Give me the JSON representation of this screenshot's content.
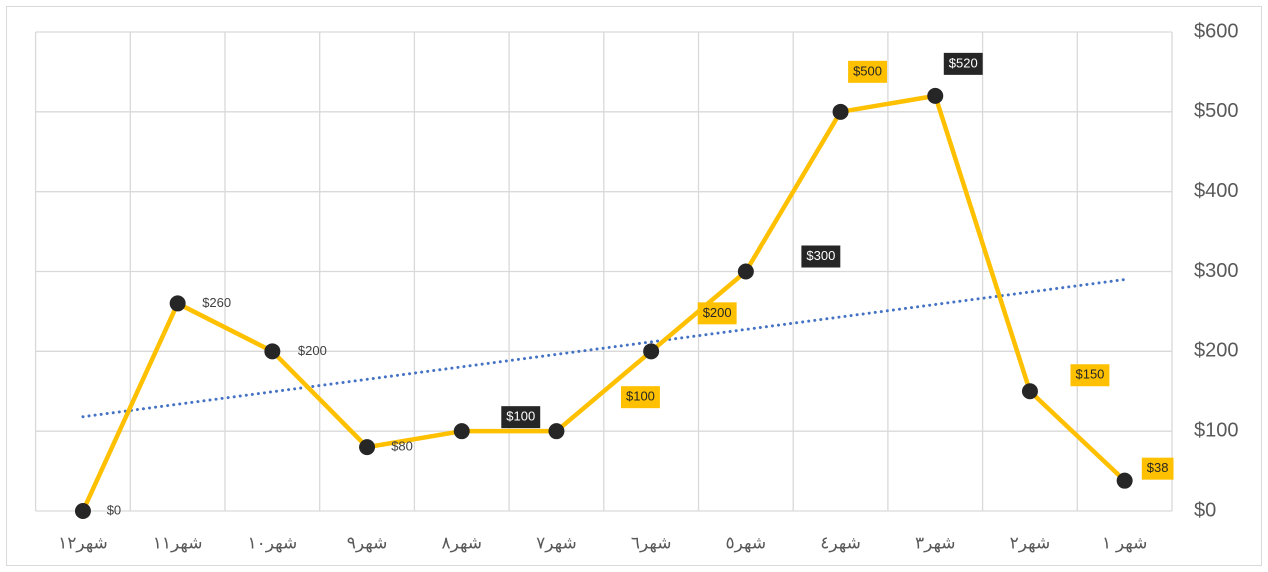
{
  "chart_data": {
    "type": "line",
    "categories": [
      "شهر١٢",
      "شهر١١",
      "شهر١٠",
      "شهر٩",
      "شهر٨",
      "شهر٧",
      "شهر٦",
      "شهر٥",
      "شهر٤",
      "شهر٣",
      "شهر٢",
      "شهر ١"
    ],
    "series": [
      {
        "color": "#ffc000",
        "marker_color": "#262626",
        "values": [
          0,
          260,
          200,
          80,
          100,
          100,
          200,
          300,
          500,
          520,
          150,
          38
        ],
        "value_labels": [
          "$0",
          "$260",
          "$200",
          "$80",
          "$100",
          "$100",
          "$200",
          "$300",
          "$500",
          "$520",
          "$150",
          "$38"
        ]
      }
    ],
    "ylim": [
      0,
      600
    ],
    "yticks": [
      {
        "value": 0,
        "label": "$0"
      },
      {
        "value": 100,
        "label": "$100"
      },
      {
        "value": 200,
        "label": "$200"
      },
      {
        "value": 300,
        "label": "$300"
      },
      {
        "value": 400,
        "label": "$400"
      },
      {
        "value": 500,
        "label": "$500"
      },
      {
        "value": 600,
        "label": "$600"
      }
    ],
    "y_axis_side": "right",
    "grid": true,
    "trendline": {
      "type": "linear",
      "color": "#4472c4"
    }
  }
}
